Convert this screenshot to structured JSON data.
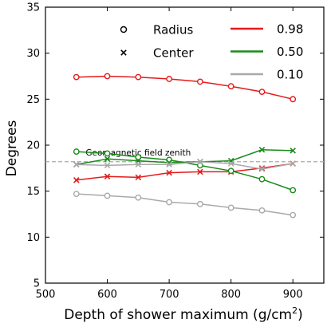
{
  "chart_data": {
    "type": "line",
    "xlabel": "Depth of shower maximum (g/cm",
    "xlabel_sup": "2",
    "xlabel_end": ")",
    "ylabel": "Degrees",
    "xlim": [
      500,
      950
    ],
    "ylim": [
      5,
      35
    ],
    "xticks": [
      500,
      600,
      700,
      800,
      900
    ],
    "yticks": [
      5,
      10,
      15,
      20,
      25,
      30,
      35
    ],
    "grid": false,
    "reference_line": {
      "y": 18.2,
      "label": "Geomagnetic field zenith",
      "color": "#a9a9a9"
    },
    "x": [
      550,
      600,
      650,
      700,
      750,
      800,
      850,
      900
    ],
    "series": [
      {
        "name": "0.98",
        "color": "#e41a1c",
        "radius": [
          27.4,
          27.5,
          27.4,
          27.2,
          26.9,
          26.4,
          25.8,
          25.0
        ],
        "center": [
          16.2,
          16.6,
          16.5,
          17.0,
          17.1,
          17.1,
          17.5,
          18.0
        ]
      },
      {
        "name": "0.50",
        "color": "#1a8a1a",
        "radius": [
          19.3,
          19.1,
          18.7,
          18.4,
          17.8,
          17.2,
          16.3,
          15.1
        ],
        "center": [
          17.9,
          18.5,
          18.3,
          18.1,
          18.2,
          18.3,
          19.5,
          19.4
        ]
      },
      {
        "name": "0.10",
        "color": "#a9a9a9",
        "radius": [
          14.7,
          14.5,
          14.3,
          13.8,
          13.6,
          13.2,
          12.9,
          12.4
        ],
        "center": [
          17.9,
          17.8,
          17.9,
          17.9,
          18.2,
          18.0,
          17.4,
          18.0
        ]
      }
    ],
    "legend": {
      "placement": "top",
      "markers": [
        {
          "symbol": "circle",
          "label": "Radius"
        },
        {
          "symbol": "cross",
          "label": "Center"
        }
      ]
    }
  }
}
